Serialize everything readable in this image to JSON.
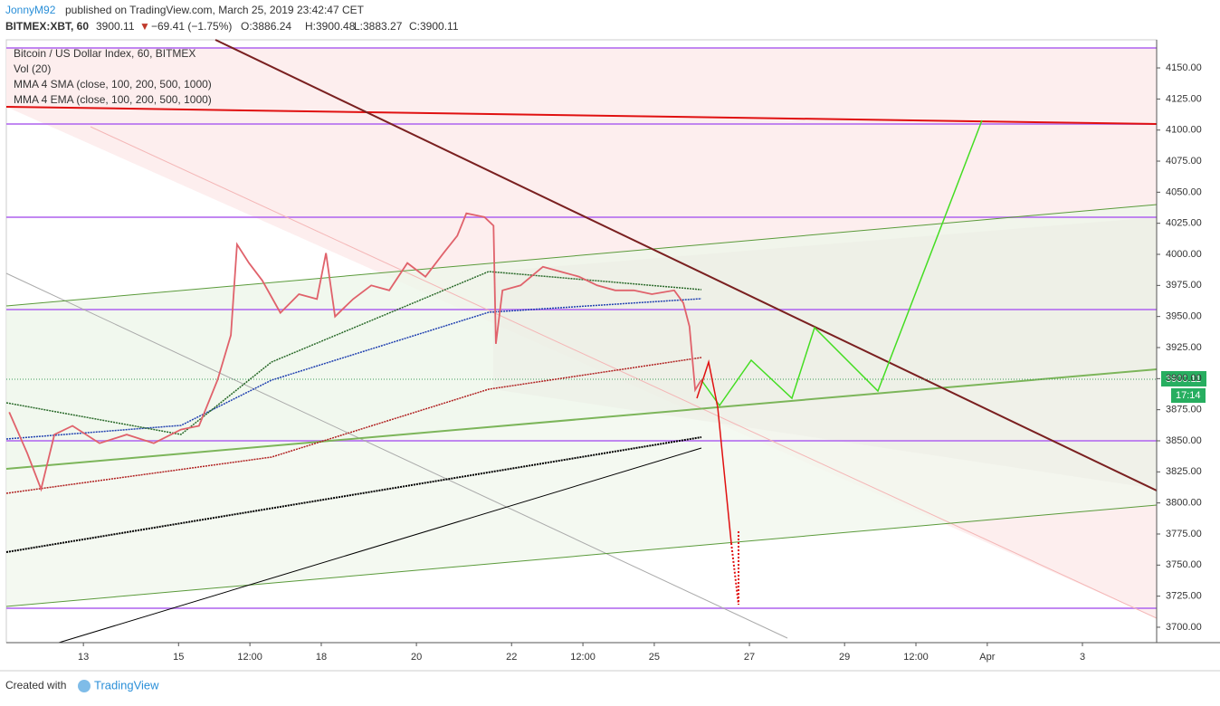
{
  "header": {
    "author": "JonnyM92",
    "published": "published on TradingView.com, March 25, 2019 23:42:47 CET",
    "symbol": "BITMEX:XBT, 60",
    "last": "3900.11",
    "change": "−69.41 (−1.75%)",
    "open": "O:3886.24",
    "high": "H:3900.48",
    "low": "L:3883.27",
    "close": "C:3900.11"
  },
  "legend": [
    "Vol (20)",
    "MMA 4 SMA (close, 100, 200, 500, 1000)",
    "MMA 4 EMA (close, 100, 200, 500, 1000)"
  ],
  "price_label": "3900.11",
  "countdown": "17:14",
  "footer": {
    "created": "Created with",
    "brand": "TradingView"
  },
  "chart_data": {
    "type": "line",
    "title": "Bitcoin / US Dollar Index, 60, BITMEX",
    "x": [
      11.44,
      11.82,
      12.11,
      12.39,
      12.77,
      13.34,
      13.91,
      14.48,
      15.05,
      15.43,
      15.82,
      16.1,
      16.23,
      16.48,
      16.76,
      17.14,
      17.53,
      17.91,
      18.1,
      18.29,
      18.67,
      19.05,
      19.43,
      19.81,
      20.19,
      20.57,
      20.86,
      21.05,
      21.43,
      21.62,
      21.67,
      21.81,
      22.19,
      22.66,
      23.04,
      23.42,
      23.8,
      24.18,
      24.57,
      24.95,
      25.42,
      25.61,
      25.74,
      25.86,
      25.99
    ],
    "series": [
      {
        "name": "BITMEX:XBT",
        "color": "#e0626b",
        "values": [
          3873,
          3840,
          3811,
          3855,
          3862,
          3848,
          3855,
          3848,
          3859,
          3862,
          3899,
          3935,
          4008,
          3993,
          3979,
          3953,
          3968,
          3964,
          4001,
          3950,
          3964,
          3975,
          3971,
          3993,
          3982,
          4001,
          4015,
          4033,
          4030,
          4023,
          3928,
          3971,
          3975,
          3990,
          3986,
          3982,
          3975,
          3971,
          3971,
          3968,
          3971,
          3961,
          3942,
          3891,
          3899
        ]
      }
    ],
    "xlim": [
      11.38,
      35.56
    ],
    "ylim": [
      3687.6,
      4172.6
    ],
    "xticks": [
      13,
      15,
      {
        "value": 16.5,
        "label": "12:00"
      },
      18,
      20,
      22,
      {
        "value": 23.5,
        "label": "12:00"
      },
      25,
      27,
      29,
      {
        "value": 30.5,
        "label": "12:00"
      },
      {
        "value": 32,
        "label": "Apr"
      },
      {
        "value": 34,
        "label": "3"
      }
    ],
    "yticks": [
      {
        "value": 3700,
        "label": "3700.00"
      },
      {
        "value": 3725,
        "label": "3725.00"
      },
      {
        "value": 3750,
        "label": "3750.00"
      },
      {
        "value": 3775,
        "label": "3775.00"
      },
      {
        "value": 3800,
        "label": "3800.00"
      },
      {
        "value": 3825,
        "label": "3825.00"
      },
      {
        "value": 3850,
        "label": "3850.00"
      },
      {
        "value": 3875,
        "label": "3875.00"
      },
      {
        "value": 3900,
        "label": "3900.00"
      },
      {
        "value": 3925,
        "label": "3925.00"
      },
      {
        "value": 3950,
        "label": "3950.00"
      },
      {
        "value": 3975,
        "label": "3975.00"
      },
      {
        "value": 4000,
        "label": "4000.00"
      },
      {
        "value": 4025,
        "label": "4025.00"
      },
      {
        "value": 4050,
        "label": "4050.00"
      },
      {
        "value": 4075,
        "label": "4075.00"
      },
      {
        "value": 4100,
        "label": "4100.00"
      },
      {
        "value": 4125,
        "label": "4125.00"
      },
      {
        "value": 4150,
        "label": "4150.00"
      }
    ],
    "grid": false
  }
}
